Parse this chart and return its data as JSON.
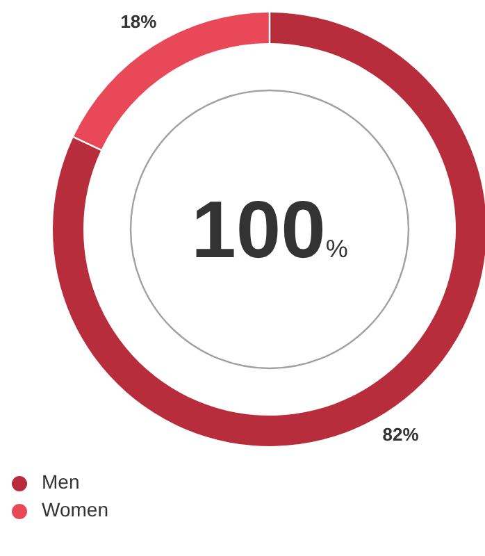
{
  "chart_data": {
    "type": "donut",
    "categories": [
      "Men",
      "Women"
    ],
    "values": [
      82,
      18
    ],
    "colors": [
      "#b82d3c",
      "#e84858"
    ],
    "value_labels": [
      "82%",
      "18%"
    ],
    "annotations": [
      "100%"
    ],
    "legend": "bottom left"
  }
}
